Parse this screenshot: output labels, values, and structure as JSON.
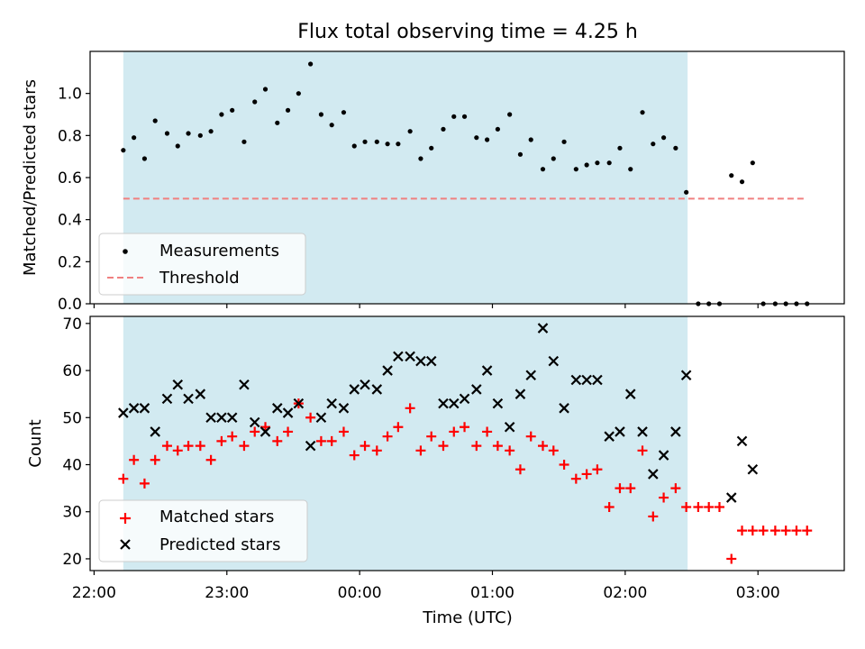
{
  "title": "Flux total observing time = 4.25 h",
  "colors": {
    "shade": "#add8e6",
    "threshold": "#f08080",
    "matched": "#ff0000",
    "predicted": "#000000",
    "measurement": "#000000"
  },
  "chart_data": [
    {
      "type": "scatter",
      "ylabel": "Matched/Predicted stars",
      "xlim": [
        -0.03,
        5.65
      ],
      "ylim": [
        0,
        1.2
      ],
      "yticks": [
        0.0,
        0.2,
        0.4,
        0.6,
        0.8,
        1.0
      ],
      "ytick_labels": [
        "0.0",
        "0.2",
        "0.4",
        "0.6",
        "0.8",
        "1.0"
      ],
      "shaded_x": [
        0.22,
        4.47
      ],
      "legend": {
        "placement": "lower-left",
        "entries": [
          "Measurements",
          "Threshold"
        ]
      },
      "threshold": {
        "name": "Threshold",
        "y": 0.5,
        "x": [
          0.22,
          5.35
        ]
      },
      "series": [
        {
          "name": "Measurements",
          "x": [
            0.22,
            0.3,
            0.38,
            0.46,
            0.55,
            0.63,
            0.71,
            0.8,
            0.88,
            0.96,
            1.04,
            1.13,
            1.21,
            1.29,
            1.38,
            1.46,
            1.54,
            1.63,
            1.71,
            1.79,
            1.88,
            1.96,
            2.04,
            2.13,
            2.21,
            2.29,
            2.38,
            2.46,
            2.54,
            2.63,
            2.71,
            2.79,
            2.88,
            2.96,
            3.04,
            3.13,
            3.21,
            3.29,
            3.38,
            3.46,
            3.54,
            3.63,
            3.71,
            3.79,
            3.88,
            3.96,
            4.04,
            4.13,
            4.21,
            4.29,
            4.38,
            4.46,
            4.55,
            4.63,
            4.71,
            4.8,
            4.88,
            4.96,
            5.04,
            5.13,
            5.21,
            5.29,
            5.37
          ],
          "y": [
            0.73,
            0.79,
            0.69,
            0.87,
            0.81,
            0.75,
            0.81,
            0.8,
            0.82,
            0.9,
            0.92,
            0.77,
            0.96,
            1.02,
            0.86,
            0.92,
            1.0,
            1.14,
            0.9,
            0.85,
            0.91,
            0.75,
            0.77,
            0.77,
            0.76,
            0.76,
            0.82,
            0.69,
            0.74,
            0.83,
            0.89,
            0.89,
            0.79,
            0.78,
            0.83,
            0.9,
            0.71,
            0.78,
            0.64,
            0.69,
            0.77,
            0.64,
            0.66,
            0.67,
            0.67,
            0.74,
            0.64,
            0.91,
            0.76,
            0.79,
            0.74,
            0.53,
            0.0,
            0.0,
            0.0,
            0.61,
            0.58,
            0.67,
            0.0,
            0.0,
            0.0,
            0.0,
            0.0
          ]
        }
      ]
    },
    {
      "type": "scatter",
      "ylabel": "Count",
      "xlabel": "Time (UTC)",
      "xlim": [
        -0.03,
        5.65
      ],
      "ylim": [
        17.5,
        71.5
      ],
      "yticks": [
        20,
        30,
        40,
        50,
        60,
        70
      ],
      "ytick_labels": [
        "20",
        "30",
        "40",
        "50",
        "60",
        "70"
      ],
      "xticks": [
        0,
        1,
        2,
        3,
        4,
        5
      ],
      "xtick_labels": [
        "22:00",
        "23:00",
        "00:00",
        "01:00",
        "02:00",
        "03:00"
      ],
      "shaded_x": [
        0.22,
        4.47
      ],
      "legend": {
        "placement": "lower-left",
        "entries": [
          "Matched stars",
          "Predicted stars"
        ]
      },
      "series": [
        {
          "name": "Matched stars",
          "x": [
            0.22,
            0.3,
            0.38,
            0.46,
            0.55,
            0.63,
            0.71,
            0.8,
            0.88,
            0.96,
            1.04,
            1.13,
            1.21,
            1.29,
            1.38,
            1.46,
            1.54,
            1.63,
            1.71,
            1.79,
            1.88,
            1.96,
            2.04,
            2.13,
            2.21,
            2.29,
            2.38,
            2.46,
            2.54,
            2.63,
            2.71,
            2.79,
            2.88,
            2.96,
            3.04,
            3.13,
            3.21,
            3.29,
            3.38,
            3.46,
            3.54,
            3.63,
            3.71,
            3.79,
            3.88,
            3.96,
            4.04,
            4.13,
            4.21,
            4.29,
            4.38,
            4.46,
            4.55,
            4.63,
            4.71,
            4.8,
            4.88,
            4.96,
            5.04,
            5.13,
            5.21,
            5.29,
            5.37
          ],
          "y": [
            37,
            41,
            36,
            41,
            44,
            43,
            44,
            44,
            41,
            45,
            46,
            44,
            47,
            48,
            45,
            47,
            53,
            50,
            45,
            45,
            47,
            42,
            44,
            43,
            46,
            48,
            52,
            43,
            46,
            44,
            47,
            48,
            44,
            47,
            44,
            43,
            39,
            46,
            44,
            43,
            40,
            37,
            38,
            39,
            31,
            35,
            35,
            43,
            29,
            33,
            35,
            31,
            31,
            31,
            31,
            20,
            26,
            26,
            26,
            26,
            26,
            26,
            26
          ]
        },
        {
          "name": "Predicted stars",
          "x": [
            0.22,
            0.3,
            0.38,
            0.46,
            0.55,
            0.63,
            0.71,
            0.8,
            0.88,
            0.96,
            1.04,
            1.13,
            1.21,
            1.29,
            1.38,
            1.46,
            1.54,
            1.63,
            1.71,
            1.79,
            1.88,
            1.96,
            2.04,
            2.13,
            2.21,
            2.29,
            2.38,
            2.46,
            2.54,
            2.63,
            2.71,
            2.79,
            2.88,
            2.96,
            3.04,
            3.13,
            3.21,
            3.29,
            3.38,
            3.46,
            3.54,
            3.63,
            3.71,
            3.79,
            3.88,
            3.96,
            4.04,
            4.13,
            4.21,
            4.29,
            4.38,
            4.46,
            4.8,
            4.88,
            4.96
          ],
          "y": [
            51,
            52,
            52,
            47,
            54,
            57,
            54,
            55,
            50,
            50,
            50,
            57,
            49,
            47,
            52,
            51,
            53,
            44,
            50,
            53,
            52,
            56,
            57,
            56,
            60,
            63,
            63,
            62,
            62,
            53,
            53,
            54,
            56,
            60,
            53,
            48,
            55,
            59,
            69,
            62,
            52,
            58,
            58,
            58,
            46,
            47,
            55,
            47,
            38,
            42,
            47,
            59,
            33,
            45,
            39
          ]
        }
      ]
    }
  ]
}
